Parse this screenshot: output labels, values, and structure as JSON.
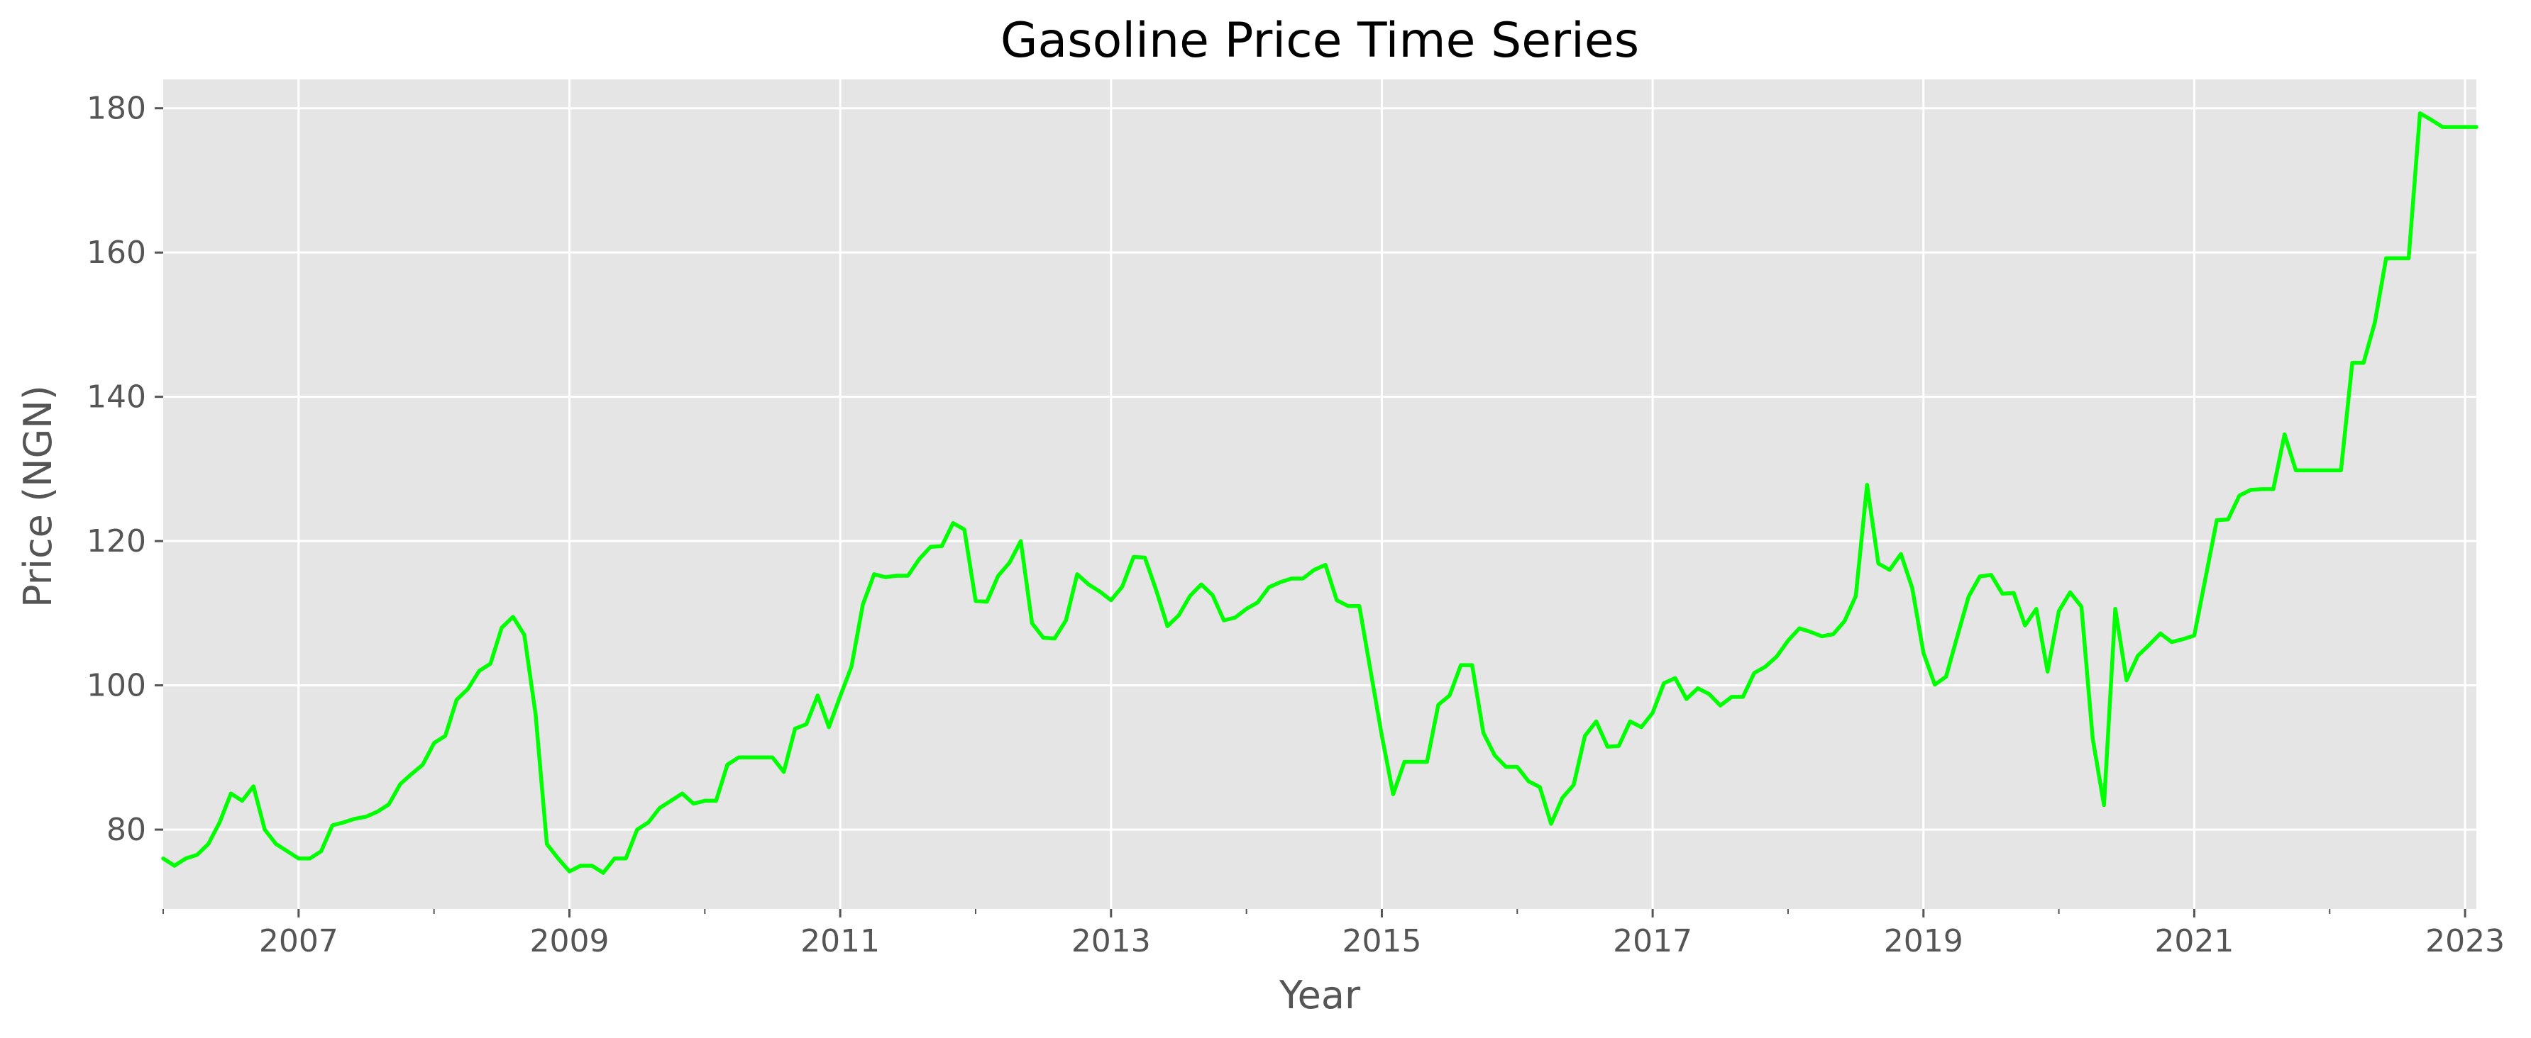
{
  "chart_data": {
    "type": "line",
    "title": "Gasoline Price Time Series",
    "xlabel": "Year",
    "ylabel": "Price (NGN)",
    "xlim": [
      "2006-01",
      "2023-02"
    ],
    "ylim": [
      69,
      184
    ],
    "x_ticks": [
      "2007",
      "2009",
      "2011",
      "2013",
      "2015",
      "2017",
      "2019",
      "2021",
      "2023"
    ],
    "y_ticks": [
      80,
      100,
      120,
      140,
      160,
      180
    ],
    "grid": true,
    "style": {
      "background": "#E5E5E5",
      "grid_color": "#FFFFFF",
      "line_color": "#00FF00",
      "text_color": "#555555"
    },
    "series": [
      {
        "x": [
          "2006-01",
          "2006-02",
          "2006-03",
          "2006-04",
          "2006-05",
          "2006-06",
          "2006-07",
          "2006-08",
          "2006-09",
          "2006-10",
          "2006-11",
          "2006-12",
          "2007-01",
          "2007-02",
          "2007-03",
          "2007-04",
          "2007-05",
          "2007-06",
          "2007-07",
          "2007-08",
          "2007-09",
          "2007-10",
          "2007-11",
          "2007-12",
          "2008-01",
          "2008-02",
          "2008-03",
          "2008-04",
          "2008-05",
          "2008-06",
          "2008-07",
          "2008-08",
          "2008-09",
          "2008-10",
          "2008-11",
          "2008-12",
          "2009-01",
          "2009-02",
          "2009-03",
          "2009-04",
          "2009-05",
          "2009-06",
          "2009-07",
          "2009-08",
          "2009-09",
          "2009-10",
          "2009-11",
          "2009-12",
          "2010-01",
          "2010-02",
          "2010-03",
          "2010-04",
          "2010-05",
          "2010-06",
          "2010-07",
          "2010-08",
          "2010-09",
          "2010-10",
          "2010-11",
          "2010-12",
          "2011-01",
          "2011-02",
          "2011-03",
          "2011-04",
          "2011-05",
          "2011-06",
          "2011-07",
          "2011-08",
          "2011-09",
          "2011-10",
          "2011-11",
          "2011-12",
          "2012-01",
          "2012-02",
          "2012-03",
          "2012-04",
          "2012-05",
          "2012-06",
          "2012-07",
          "2012-08",
          "2012-09",
          "2012-10",
          "2012-11",
          "2012-12",
          "2013-01",
          "2013-02",
          "2013-03",
          "2013-04",
          "2013-05",
          "2013-06",
          "2013-07",
          "2013-08",
          "2013-09",
          "2013-10",
          "2013-11",
          "2013-12",
          "2014-01",
          "2014-02",
          "2014-03",
          "2014-04",
          "2014-05",
          "2014-06",
          "2014-07",
          "2014-08",
          "2014-09",
          "2014-10",
          "2014-11",
          "2014-12",
          "2015-01",
          "2015-02",
          "2015-03",
          "2015-04",
          "2015-05",
          "2015-06",
          "2015-07",
          "2015-08",
          "2015-09",
          "2015-10",
          "2015-11",
          "2015-12",
          "2016-01",
          "2016-02",
          "2016-03",
          "2016-04",
          "2016-05",
          "2016-06",
          "2016-07",
          "2016-08",
          "2016-09",
          "2016-10",
          "2016-11",
          "2016-12",
          "2017-01",
          "2017-02",
          "2017-03",
          "2017-04",
          "2017-05",
          "2017-06",
          "2017-07",
          "2017-08",
          "2017-09",
          "2017-10",
          "2017-11",
          "2017-12",
          "2018-01",
          "2018-02",
          "2018-03",
          "2018-04",
          "2018-05",
          "2018-06",
          "2018-07",
          "2018-08",
          "2018-09",
          "2018-10",
          "2018-11",
          "2018-12",
          "2019-01",
          "2019-02",
          "2019-03",
          "2019-04",
          "2019-05",
          "2019-06",
          "2019-07",
          "2019-08",
          "2019-09",
          "2019-10",
          "2019-11",
          "2019-12",
          "2020-01",
          "2020-02",
          "2020-03",
          "2020-04",
          "2020-05",
          "2020-06",
          "2020-07",
          "2020-08",
          "2020-09",
          "2020-10",
          "2020-11",
          "2020-12",
          "2021-01",
          "2021-02",
          "2021-03",
          "2021-04",
          "2021-05",
          "2021-06",
          "2021-07",
          "2021-08",
          "2021-09",
          "2021-10",
          "2021-11",
          "2021-12",
          "2022-01",
          "2022-02",
          "2022-03",
          "2022-04",
          "2022-05",
          "2022-06",
          "2022-07",
          "2022-08",
          "2022-09",
          "2022-10",
          "2022-11",
          "2022-12",
          "2023-01",
          "2023-02"
        ],
        "values": [
          76,
          75,
          76,
          76.5,
          78,
          81,
          85,
          84,
          86,
          80,
          78,
          77,
          76,
          76,
          77,
          80.6,
          81,
          81.5,
          81.8,
          82.5,
          83.5,
          86.3,
          87.7,
          89,
          92,
          93,
          98,
          99.5,
          102,
          103,
          108,
          109.5,
          107,
          96,
          78,
          76,
          74.2,
          75,
          75,
          74,
          76,
          76,
          80,
          81,
          83,
          84,
          85,
          83.6,
          84,
          84,
          89,
          90,
          90,
          90,
          90,
          88,
          94,
          94.6,
          98.6,
          94.2,
          98.5,
          102.6,
          111.2,
          115.4,
          115,
          115.2,
          115.2,
          117.5,
          119.2,
          119.3,
          122.5,
          121.6,
          111.7,
          111.6,
          115.2,
          117,
          120,
          108.6,
          106.6,
          106.5,
          109,
          115.4,
          114,
          113,
          111.8,
          113.7,
          117.8,
          117.7,
          113.2,
          108.2,
          109.7,
          112.4,
          114,
          112.5,
          109,
          109.4,
          110.6,
          111.5,
          113.6,
          114.3,
          114.8,
          114.8,
          116,
          116.7,
          111.8,
          111,
          111,
          102,
          93,
          84.9,
          89.4,
          89.4,
          89.4,
          97.3,
          98.6,
          102.8,
          102.8,
          93.4,
          90.3,
          88.7,
          88.7,
          86.7,
          85.9,
          80.8,
          84.4,
          86.2,
          93,
          95,
          91.5,
          91.6,
          95,
          94.2,
          96.2,
          100.3,
          101,
          98.1,
          99.6,
          98.8,
          97.2,
          98.4,
          98.4,
          101.7,
          102.6,
          104,
          106.2,
          107.9,
          107.4,
          106.8,
          107.1,
          108.9,
          112.4,
          127.8,
          116.9,
          116,
          118.2,
          113.5,
          104.5,
          100.1,
          101.2,
          106.8,
          112.3,
          115.1,
          115.3,
          112.7,
          112.8,
          108.3,
          110.6,
          101.9,
          110.3,
          112.9,
          110.9,
          92.6,
          83.4,
          110.6,
          100.7,
          104.1,
          105.6,
          107.2,
          106,
          106.4,
          106.9,
          114.9,
          122.9,
          123,
          126.3,
          127.1,
          127.2,
          127.2,
          134.8,
          129.8,
          129.8,
          129.8,
          129.8,
          129.8,
          144.7,
          144.7,
          150.3,
          159.2,
          159.2,
          159.2,
          179.3,
          178.4,
          177.4,
          177.4,
          177.4,
          177.4
        ]
      }
    ]
  }
}
